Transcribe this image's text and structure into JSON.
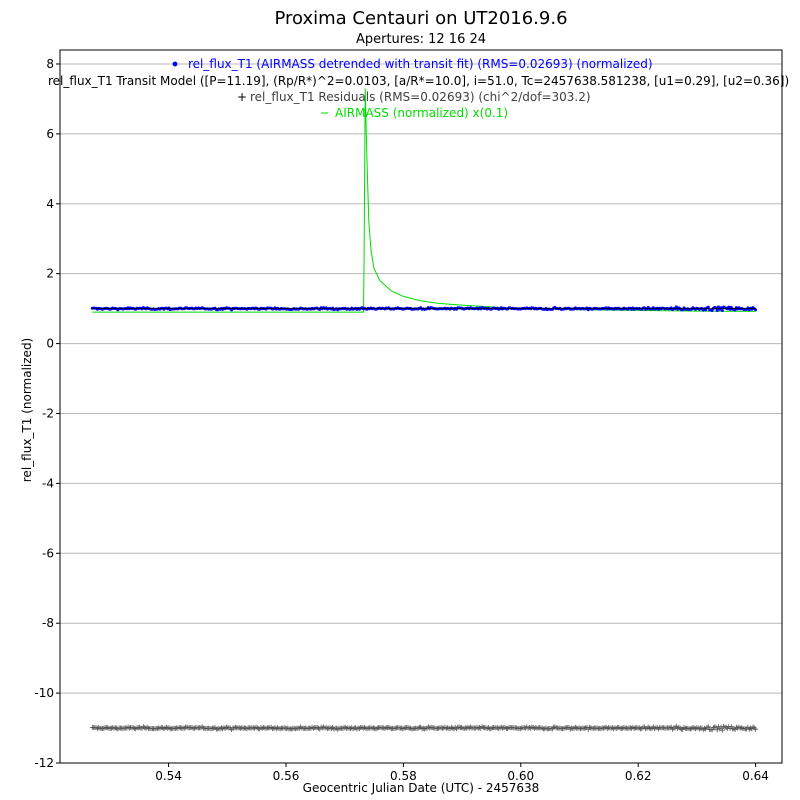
{
  "chart_data": {
    "type": "scatter",
    "title": "Proxima Centauri on UT2016.9.6",
    "subtitle": "Apertures: 12 16 24",
    "xlabel": "Geocentric Julian Date (UTC) - 2457638",
    "ylabel": "rel_flux_T1 (normalized)",
    "xlim": [
      0.5215,
      0.6445
    ],
    "ylim": [
      -12,
      8.4
    ],
    "x_ticks": [
      0.54,
      0.56,
      0.58,
      0.6,
      0.62,
      0.64
    ],
    "x_tick_labels": [
      "0.54",
      "0.56",
      "0.58",
      "0.60",
      "0.62",
      "0.64"
    ],
    "y_ticks": [
      8,
      6,
      4,
      2,
      0,
      -2,
      -4,
      -6,
      -8,
      -10,
      -12
    ],
    "y_tick_labels": [
      "8",
      "6",
      "4",
      "2",
      "0",
      "-2",
      "-4",
      "-6",
      "-8",
      "-10",
      "-12"
    ],
    "grid": "horizontal",
    "legend_placement": "top-center",
    "series": [
      {
        "name": "rel_flux_T1 (AIRMASS detrended with transit fit) (RMS=0.02693) (normalized)",
        "kind": "points",
        "marker": "dot",
        "color": "#0000ff",
        "x_range": [
          0.527,
          0.64
        ],
        "baseline": 1.0,
        "scatter": 0.027
      },
      {
        "name": "rel_flux_T1 Transit Model ([P=11.19], (Rp/R*)^2=0.0103, [a/R*=10.0], i=51.0, Tc=2457638.581238, [u1=0.29], [u2=0.36])",
        "kind": "line",
        "color": "#000000",
        "x_range": [
          0.527,
          0.64
        ],
        "baseline": 1.0
      },
      {
        "name": "rel_flux_T1 Residuals (RMS=0.02693) (chi^2/dof=303.2)",
        "kind": "points",
        "marker": "plus",
        "color": "#404040",
        "x_range": [
          0.527,
          0.64
        ],
        "baseline": -11.0,
        "scatter": 0.027
      },
      {
        "name": "AIRMASS (normalized) x(0.1)",
        "kind": "line",
        "color": "#00dd00",
        "points": [
          [
            0.527,
            0.9
          ],
          [
            0.5732,
            0.9
          ],
          [
            0.5733,
            2.5
          ],
          [
            0.5735,
            7.3
          ],
          [
            0.5738,
            5.2
          ],
          [
            0.5741,
            3.5
          ],
          [
            0.5745,
            2.65
          ],
          [
            0.575,
            2.15
          ],
          [
            0.576,
            1.8
          ],
          [
            0.578,
            1.5
          ],
          [
            0.58,
            1.35
          ],
          [
            0.583,
            1.22
          ],
          [
            0.586,
            1.15
          ],
          [
            0.59,
            1.1
          ],
          [
            0.595,
            1.05
          ],
          [
            0.6,
            1.0
          ],
          [
            0.61,
            0.97
          ],
          [
            0.62,
            0.95
          ],
          [
            0.63,
            0.93
          ],
          [
            0.64,
            0.92
          ]
        ]
      }
    ]
  }
}
